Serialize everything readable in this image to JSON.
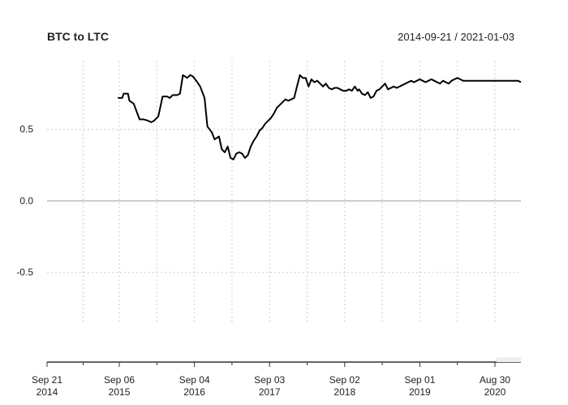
{
  "chart_data": {
    "type": "line",
    "title": "BTC to LTC",
    "date_range": "2014-09-21 / 2021-01-03",
    "xlabel": "",
    "ylabel": "",
    "x_range": [
      "2014-09-21",
      "2021-01-03"
    ],
    "ylim": [
      -0.85,
      0.98
    ],
    "y_ticks": [
      {
        "value": 0.5,
        "label": "0.5"
      },
      {
        "value": 0.0,
        "label": "0.0"
      },
      {
        "value": -0.5,
        "label": "-0.5"
      }
    ],
    "x_ticks": [
      {
        "date": "2014-09-21",
        "month_label": "Sep 21",
        "year_label": "2014"
      },
      {
        "date": "2015-09-06",
        "month_label": "Sep 06",
        "year_label": "2015"
      },
      {
        "date": "2016-09-04",
        "month_label": "Sep 04",
        "year_label": "2016"
      },
      {
        "date": "2017-09-03",
        "month_label": "Sep 03",
        "year_label": "2017"
      },
      {
        "date": "2018-09-02",
        "month_label": "Sep 02",
        "year_label": "2018"
      },
      {
        "date": "2019-09-01",
        "month_label": "Sep 01",
        "year_label": "2019"
      },
      {
        "date": "2020-08-30",
        "month_label": "Aug 30",
        "year_label": "2020"
      }
    ],
    "grid": true,
    "colors": {
      "line": "#000000",
      "grid": "#cccccc",
      "zero_line": "#999999",
      "axis": "#333333"
    },
    "series": [
      {
        "name": "",
        "x": [
          "2015-08-30",
          "2015-09-20",
          "2015-09-27",
          "2015-10-18",
          "2015-10-25",
          "2015-11-15",
          "2015-12-13",
          "2016-01-03",
          "2016-01-24",
          "2016-02-07",
          "2016-02-21",
          "2016-03-13",
          "2016-04-03",
          "2016-04-24",
          "2016-05-08",
          "2016-05-22",
          "2016-06-12",
          "2016-06-26",
          "2016-07-10",
          "2016-07-31",
          "2016-08-14",
          "2016-08-28",
          "2016-09-18",
          "2016-10-02",
          "2016-10-23",
          "2016-11-06",
          "2016-11-27",
          "2016-12-11",
          "2017-01-01",
          "2017-01-15",
          "2017-01-29",
          "2017-02-12",
          "2017-02-26",
          "2017-03-12",
          "2017-03-26",
          "2017-04-09",
          "2017-04-23",
          "2017-05-07",
          "2017-05-21",
          "2017-06-04",
          "2017-06-18",
          "2017-07-02",
          "2017-07-16",
          "2017-07-30",
          "2017-08-13",
          "2017-08-27",
          "2017-09-10",
          "2017-09-24",
          "2017-10-08",
          "2017-10-22",
          "2017-11-05",
          "2017-11-19",
          "2017-12-03",
          "2017-12-17",
          "2017-12-31",
          "2018-01-14",
          "2018-01-28",
          "2018-02-11",
          "2018-02-25",
          "2018-03-11",
          "2018-03-25",
          "2018-04-08",
          "2018-04-22",
          "2018-05-06",
          "2018-05-20",
          "2018-06-03",
          "2018-06-17",
          "2018-07-01",
          "2018-07-15",
          "2018-07-29",
          "2018-08-12",
          "2018-08-26",
          "2018-09-09",
          "2018-09-23",
          "2018-10-07",
          "2018-10-21",
          "2018-11-04",
          "2018-11-11",
          "2018-11-25",
          "2018-12-09",
          "2018-12-23",
          "2019-01-06",
          "2019-01-20",
          "2019-02-03",
          "2019-02-17",
          "2019-03-03",
          "2019-03-17",
          "2019-03-31",
          "2019-04-14",
          "2019-04-28",
          "2019-05-12",
          "2019-05-26",
          "2019-06-09",
          "2019-06-23",
          "2019-07-07",
          "2019-07-21",
          "2019-08-04",
          "2019-08-18",
          "2019-09-01",
          "2019-09-15",
          "2019-09-29",
          "2019-10-13",
          "2019-10-27",
          "2019-11-10",
          "2019-11-24",
          "2019-12-08",
          "2019-12-22",
          "2020-01-05",
          "2020-01-19",
          "2020-02-02",
          "2020-02-16",
          "2020-03-01",
          "2020-03-15",
          "2020-03-29",
          "2020-04-12",
          "2020-04-26",
          "2020-05-10",
          "2020-05-24",
          "2020-06-07",
          "2020-06-21",
          "2020-07-05",
          "2020-07-19",
          "2020-08-02",
          "2020-08-16",
          "2020-08-30",
          "2020-09-13",
          "2020-09-27",
          "2020-10-11",
          "2020-10-25",
          "2020-11-08",
          "2020-11-22",
          "2020-12-06",
          "2020-12-20",
          "2021-01-03"
        ],
        "values": [
          0.72,
          0.72,
          0.75,
          0.75,
          0.7,
          0.68,
          0.57,
          0.57,
          0.56,
          0.55,
          0.56,
          0.59,
          0.73,
          0.73,
          0.72,
          0.74,
          0.74,
          0.75,
          0.88,
          0.86,
          0.88,
          0.87,
          0.83,
          0.8,
          0.72,
          0.52,
          0.48,
          0.43,
          0.45,
          0.36,
          0.34,
          0.38,
          0.3,
          0.29,
          0.33,
          0.34,
          0.33,
          0.3,
          0.32,
          0.38,
          0.42,
          0.45,
          0.49,
          0.51,
          0.54,
          0.56,
          0.58,
          0.61,
          0.65,
          0.67,
          0.69,
          0.71,
          0.7,
          0.71,
          0.72,
          0.8,
          0.88,
          0.86,
          0.86,
          0.8,
          0.85,
          0.83,
          0.84,
          0.82,
          0.8,
          0.82,
          0.79,
          0.78,
          0.79,
          0.79,
          0.78,
          0.77,
          0.77,
          0.78,
          0.77,
          0.8,
          0.77,
          0.78,
          0.75,
          0.74,
          0.76,
          0.72,
          0.73,
          0.77,
          0.78,
          0.8,
          0.82,
          0.78,
          0.79,
          0.8,
          0.79,
          0.8,
          0.81,
          0.82,
          0.83,
          0.84,
          0.83,
          0.84,
          0.85,
          0.84,
          0.83,
          0.84,
          0.85,
          0.84,
          0.83,
          0.82,
          0.84,
          0.83,
          0.82,
          0.84,
          0.85,
          0.86,
          0.85,
          0.84,
          0.84,
          0.84,
          0.84,
          0.84,
          0.84,
          0.84,
          0.84,
          0.84,
          0.84,
          0.84,
          0.84,
          0.84,
          0.84,
          0.84,
          0.84,
          0.84,
          0.84,
          0.84,
          0.84,
          0.83
        ]
      }
    ]
  }
}
